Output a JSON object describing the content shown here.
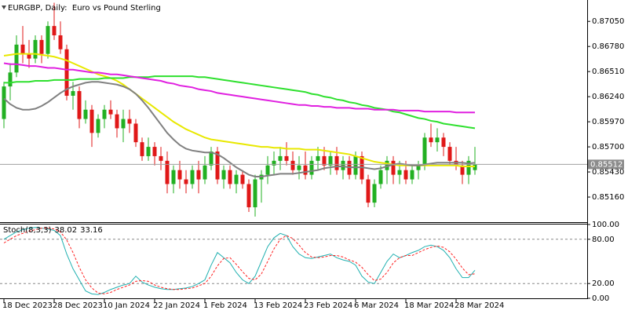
{
  "chart_data": [
    {
      "type": "candlestick",
      "title": "EURGBP, Daily:  Euro vs Pound Sterling",
      "categories": [
        "18 Dec 2023",
        null,
        null,
        null,
        null,
        null,
        null,
        null,
        "28 Dec 2023",
        null,
        null,
        null,
        null,
        null,
        null,
        null,
        "10 Jan 2024",
        null,
        null,
        null,
        null,
        null,
        null,
        null,
        "22 Jan 2024",
        null,
        null,
        null,
        null,
        null,
        null,
        null,
        "1 Feb 2024",
        null,
        null,
        null,
        null,
        null,
        null,
        null,
        "13 Feb 2024",
        null,
        null,
        null,
        null,
        null,
        null,
        null,
        "23 Feb 2024",
        null,
        null,
        null,
        null,
        null,
        null,
        null,
        "6 Mar 2024",
        null,
        null,
        null,
        null,
        null,
        null,
        null,
        "18 Mar 2024",
        null,
        null,
        null,
        null,
        null,
        null,
        null,
        "28 Mar 2024",
        null,
        null,
        null
      ],
      "open": [
        0.86,
        0.8635,
        0.865,
        0.868,
        0.867,
        0.8665,
        0.8685,
        0.867,
        0.87,
        0.869,
        0.8675,
        0.8625,
        0.863,
        0.86,
        0.861,
        0.8585,
        0.86,
        0.861,
        0.8605,
        0.859,
        0.86,
        0.8595,
        0.8575,
        0.856,
        0.857,
        0.856,
        0.8555,
        0.853,
        0.8545,
        0.8535,
        0.853,
        0.8545,
        0.8535,
        0.855,
        0.8565,
        0.8535,
        0.8545,
        0.853,
        0.854,
        0.853,
        0.8505,
        0.8535,
        0.854,
        0.855,
        0.8555,
        0.856,
        0.8555,
        0.8545,
        0.855,
        0.854,
        0.8555,
        0.856,
        0.855,
        0.856,
        0.8545,
        0.8555,
        0.854,
        0.856,
        0.8535,
        0.851,
        0.853,
        0.8545,
        0.8555,
        0.854,
        0.8545,
        0.8535,
        0.8545,
        0.855,
        0.858,
        0.8575,
        0.858,
        0.857,
        0.8555,
        0.855,
        0.854,
        0.8545
      ],
      "high": [
        0.864,
        0.866,
        0.869,
        0.87,
        0.8685,
        0.869,
        0.869,
        0.8705,
        0.8725,
        0.8705,
        0.868,
        0.864,
        0.8635,
        0.862,
        0.8615,
        0.8605,
        0.8615,
        0.862,
        0.861,
        0.861,
        0.861,
        0.86,
        0.858,
        0.858,
        0.8575,
        0.857,
        0.8565,
        0.855,
        0.8555,
        0.8545,
        0.855,
        0.8555,
        0.856,
        0.857,
        0.857,
        0.855,
        0.855,
        0.8545,
        0.8545,
        0.8535,
        0.854,
        0.8545,
        0.856,
        0.8565,
        0.857,
        0.8575,
        0.8565,
        0.856,
        0.8565,
        0.856,
        0.857,
        0.857,
        0.8565,
        0.857,
        0.856,
        0.856,
        0.8565,
        0.8565,
        0.854,
        0.8535,
        0.855,
        0.856,
        0.856,
        0.8555,
        0.8555,
        0.855,
        0.8555,
        0.8585,
        0.8595,
        0.859,
        0.8585,
        0.8575,
        0.857,
        0.8555,
        0.856,
        0.857
      ],
      "low": [
        0.859,
        0.862,
        0.8645,
        0.866,
        0.8655,
        0.866,
        0.866,
        0.8665,
        0.8685,
        0.867,
        0.862,
        0.861,
        0.859,
        0.8595,
        0.857,
        0.858,
        0.859,
        0.86,
        0.858,
        0.8575,
        0.8585,
        0.857,
        0.8555,
        0.8555,
        0.855,
        0.8545,
        0.852,
        0.852,
        0.8525,
        0.852,
        0.8525,
        0.852,
        0.853,
        0.8545,
        0.853,
        0.8525,
        0.8525,
        0.852,
        0.8525,
        0.85,
        0.8495,
        0.851,
        0.853,
        0.854,
        0.8545,
        0.855,
        0.854,
        0.8535,
        0.8535,
        0.8535,
        0.8545,
        0.8545,
        0.854,
        0.854,
        0.8535,
        0.8535,
        0.8535,
        0.853,
        0.8505,
        0.8505,
        0.8525,
        0.853,
        0.853,
        0.853,
        0.853,
        0.853,
        0.8535,
        0.8545,
        0.857,
        0.8565,
        0.856,
        0.855,
        0.8545,
        0.853,
        0.853,
        0.854
      ],
      "close": [
        0.8635,
        0.865,
        0.868,
        0.867,
        0.8665,
        0.8685,
        0.867,
        0.87,
        0.869,
        0.8675,
        0.8625,
        0.863,
        0.86,
        0.861,
        0.8585,
        0.86,
        0.861,
        0.8605,
        0.859,
        0.86,
        0.8595,
        0.8575,
        0.856,
        0.857,
        0.856,
        0.8555,
        0.853,
        0.8545,
        0.8535,
        0.853,
        0.8545,
        0.8535,
        0.855,
        0.8565,
        0.8535,
        0.8545,
        0.853,
        0.854,
        0.853,
        0.8505,
        0.8535,
        0.854,
        0.855,
        0.8555,
        0.856,
        0.8555,
        0.8545,
        0.855,
        0.854,
        0.8555,
        0.856,
        0.855,
        0.856,
        0.8545,
        0.8555,
        0.854,
        0.856,
        0.8535,
        0.851,
        0.853,
        0.8545,
        0.8555,
        0.854,
        0.8545,
        0.8535,
        0.8545,
        0.855,
        0.858,
        0.8575,
        0.858,
        0.857,
        0.8555,
        0.855,
        0.854,
        0.8555,
        0.85512
      ],
      "up_color": "#22b022",
      "down_color": "#e01818",
      "series": [
        {
          "color": "#e8e800",
          "values": [
            0.8668,
            0.8669,
            0.867,
            0.867,
            0.867,
            0.867,
            0.8669,
            0.8668,
            0.8667,
            0.8665,
            0.8663,
            0.866,
            0.8657,
            0.8654,
            0.8651,
            0.8648,
            0.8646,
            0.8644,
            0.8641,
            0.8637,
            0.8632,
            0.8627,
            0.8622,
            0.8617,
            0.8612,
            0.8607,
            0.8602,
            0.8597,
            0.8593,
            0.8589,
            0.8586,
            0.8583,
            0.858,
            0.8578,
            0.8577,
            0.8576,
            0.8575,
            0.8574,
            0.8573,
            0.8572,
            0.8571,
            0.857,
            0.857,
            0.8569,
            0.8569,
            0.8568,
            0.8568,
            0.8568,
            0.8567,
            0.8567,
            0.8567,
            0.8566,
            0.8565,
            0.8564,
            0.8563,
            0.8562,
            0.856,
            0.8558,
            0.8556,
            0.8554,
            0.8553,
            0.8552,
            0.8551,
            0.855,
            0.855,
            0.855,
            0.855,
            0.855,
            0.855,
            0.855,
            0.855,
            0.855,
            0.855,
            0.8549,
            0.8549,
            0.8549
          ]
        },
        {
          "color": "#808080",
          "values": [
            0.8622,
            0.8616,
            0.8612,
            0.861,
            0.861,
            0.8611,
            0.8614,
            0.8618,
            0.8623,
            0.8628,
            0.8632,
            0.8635,
            0.8637,
            0.8639,
            0.864,
            0.864,
            0.8639,
            0.8638,
            0.8637,
            0.8635,
            0.8632,
            0.8627,
            0.862,
            0.8612,
            0.8603,
            0.8594,
            0.8585,
            0.8578,
            0.8572,
            0.8568,
            0.8566,
            0.8565,
            0.8564,
            0.8564,
            0.8562,
            0.8558,
            0.8553,
            0.8548,
            0.8544,
            0.854,
            0.8538,
            0.8538,
            0.8539,
            0.854,
            0.8541,
            0.8541,
            0.8541,
            0.8542,
            0.8543,
            0.8544,
            0.8545,
            0.8547,
            0.8548,
            0.8549,
            0.8549,
            0.8548,
            0.8548,
            0.8548,
            0.8547,
            0.8546,
            0.8547,
            0.8549,
            0.8551,
            0.8552,
            0.8551,
            0.855,
            0.855,
            0.8551,
            0.8552,
            0.8553,
            0.8553,
            0.8553,
            0.8553,
            0.8553,
            0.8552,
            0.8553
          ]
        },
        {
          "color": "#2ee02e",
          "values": [
            0.8639,
            0.8639,
            0.864,
            0.864,
            0.864,
            0.8641,
            0.8641,
            0.8641,
            0.8642,
            0.8642,
            0.8642,
            0.8642,
            0.8643,
            0.8643,
            0.8643,
            0.8643,
            0.8644,
            0.8644,
            0.8644,
            0.8644,
            0.8645,
            0.8645,
            0.8645,
            0.8645,
            0.8646,
            0.8646,
            0.8646,
            0.8646,
            0.8646,
            0.8646,
            0.8646,
            0.8645,
            0.8645,
            0.8644,
            0.8643,
            0.8642,
            0.8641,
            0.864,
            0.8639,
            0.8638,
            0.8637,
            0.8636,
            0.8635,
            0.8634,
            0.8633,
            0.8632,
            0.8631,
            0.863,
            0.8629,
            0.8627,
            0.8626,
            0.8624,
            0.8623,
            0.8621,
            0.862,
            0.8618,
            0.8617,
            0.8615,
            0.8614,
            0.8612,
            0.8611,
            0.861,
            0.8608,
            0.8607,
            0.8605,
            0.8603,
            0.8601,
            0.86,
            0.8598,
            0.8597,
            0.8595,
            0.8594,
            0.8593,
            0.8592,
            0.8591,
            0.859
          ]
        },
        {
          "color": "#e020e0",
          "values": [
            0.866,
            0.8659,
            0.8659,
            0.8658,
            0.8657,
            0.8657,
            0.8656,
            0.8655,
            0.8655,
            0.8654,
            0.8653,
            0.8653,
            0.8652,
            0.8651,
            0.865,
            0.865,
            0.8649,
            0.8648,
            0.8648,
            0.8647,
            0.8646,
            0.8645,
            0.8644,
            0.8643,
            0.8642,
            0.8641,
            0.8639,
            0.8638,
            0.8636,
            0.8635,
            0.8634,
            0.8632,
            0.8631,
            0.863,
            0.8628,
            0.8627,
            0.8626,
            0.8625,
            0.8624,
            0.8623,
            0.8622,
            0.8621,
            0.862,
            0.8619,
            0.8618,
            0.8617,
            0.8616,
            0.8615,
            0.8615,
            0.8614,
            0.8614,
            0.8613,
            0.8613,
            0.8612,
            0.8612,
            0.8612,
            0.8611,
            0.8611,
            0.8611,
            0.861,
            0.861,
            0.861,
            0.861,
            0.8609,
            0.8609,
            0.8609,
            0.8609,
            0.8608,
            0.8608,
            0.8608,
            0.8608,
            0.8608,
            0.8607,
            0.8607,
            0.8607,
            0.8607
          ]
        }
      ],
      "ylim": [
        0.8489,
        0.8728
      ],
      "yticks": [
        {
          "value": 0.8705,
          "label": "0.87050"
        },
        {
          "value": 0.8678,
          "label": "0.86780"
        },
        {
          "value": 0.8651,
          "label": "0.86510"
        },
        {
          "value": 0.8624,
          "label": "0.86240"
        },
        {
          "value": 0.8597,
          "label": "0.85970"
        },
        {
          "value": 0.857,
          "label": "0.85700"
        },
        {
          "value": 0.8543,
          "label": "0.85430"
        },
        {
          "value": 0.8516,
          "label": "0.85160"
        }
      ],
      "grid": false
    },
    {
      "type": "line",
      "title": "Stoch(8,3,3)",
      "series": [
        {
          "color": "#20b0b0",
          "style": "solid",
          "values": [
            80,
            85,
            90,
            93,
            95,
            96,
            95,
            94,
            92,
            85,
            60,
            40,
            25,
            10,
            6,
            5,
            8,
            12,
            15,
            18,
            20,
            30,
            22,
            18,
            15,
            13,
            12,
            12,
            13,
            14,
            16,
            20,
            25,
            45,
            62,
            55,
            48,
            35,
            25,
            20,
            30,
            50,
            70,
            82,
            88,
            85,
            70,
            60,
            55,
            54,
            56,
            58,
            60,
            55,
            52,
            50,
            45,
            30,
            22,
            20,
            35,
            50,
            60,
            55,
            58,
            62,
            65,
            70,
            72,
            70,
            65,
            55,
            40,
            28,
            28,
            38.02
          ]
        },
        {
          "color": "#ff2020",
          "style": "dashed",
          "values": [
            75,
            80,
            85,
            88,
            91,
            93,
            95,
            95,
            94,
            90,
            79,
            62,
            42,
            25,
            14,
            7,
            6,
            8,
            12,
            15,
            18,
            23,
            24,
            23,
            18,
            15,
            13,
            12,
            12,
            13,
            14,
            17,
            20,
            30,
            44,
            54,
            55,
            46,
            36,
            27,
            25,
            33,
            50,
            67,
            80,
            85,
            81,
            72,
            62,
            56,
            55,
            56,
            58,
            58,
            56,
            52,
            49,
            42,
            32,
            24,
            26,
            35,
            48,
            55,
            58,
            58,
            62,
            66,
            69,
            71,
            69,
            63,
            53,
            41,
            32,
            33.16
          ]
        }
      ],
      "ylim": [
        0,
        100
      ],
      "yticks": [
        {
          "value": 100,
          "label": "100.00"
        },
        {
          "value": 80,
          "label": "80.00"
        },
        {
          "value": 20,
          "label": "20.00"
        },
        {
          "value": 0,
          "label": "0.00"
        }
      ],
      "grid": true
    }
  ]
}
